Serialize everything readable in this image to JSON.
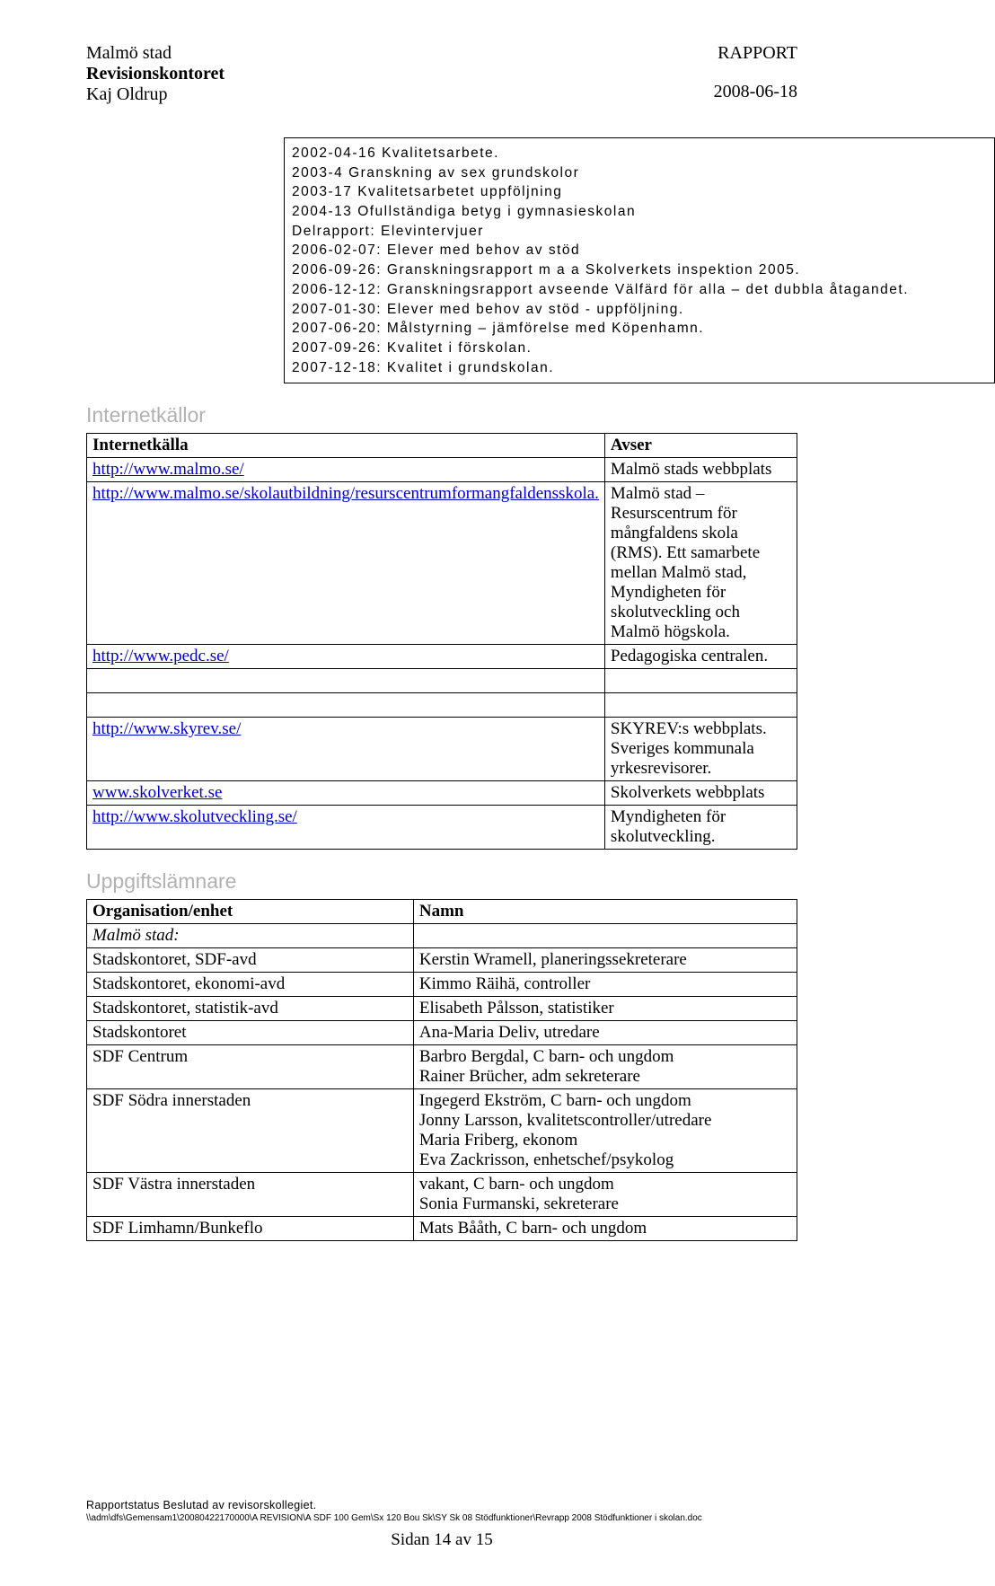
{
  "header": {
    "org": "Malmö stad",
    "dept": "Revisionskontoret",
    "author": "Kaj Oldrup",
    "doctype": "RAPPORT",
    "date": "2008-06-18"
  },
  "bibliography": [
    "2002-04-16 Kvalitetsarbete.",
    "2003-4 Granskning av sex grundskolor",
    "2003-17 Kvalitetsarbetet uppföljning",
    "2004-13 Ofullständiga betyg i gymnasieskolan",
    "Delrapport: Elevintervjuer",
    "2006-02-07: Elever med behov av stöd",
    "2006-09-26: Granskningsrapport m a a Skolverkets inspektion 2005.",
    "2006-12-12: Granskningsrapport avseende Välfärd för alla – det dubbla åtagandet.",
    "2007-01-30: Elever med behov av stöd - uppföljning.",
    "2007-06-20: Målstyrning – jämförelse med Köpenhamn.",
    "2007-09-26: Kvalitet i förskolan.",
    "2007-12-18: Kvalitet i grundskolan."
  ],
  "sections": {
    "internet": "Internetkällor",
    "uppgift": "Uppgiftslämnare"
  },
  "internetTable": {
    "headers": [
      "Internetkälla",
      "Avser"
    ],
    "rows": [
      {
        "url": "http://www.malmo.se/",
        "desc": "Malmö stads webbplats"
      },
      {
        "url": "http://www.malmo.se/skolautbildning/resurscentrumformangfaldensskola.",
        "desc": "Malmö stad – Resurscentrum för mångfaldens skola (RMS). Ett samarbete mellan Malmö stad, Myndigheten för skolutveckling och Malmö högskola."
      },
      {
        "url": "http://www.pedc.se/",
        "desc": "Pedagogiska centralen."
      }
    ],
    "rows2": [
      {
        "url": "http://www.skyrev.se/",
        "desc": "SKYREV:s webbplats. Sveriges kommunala yrkesrevisorer."
      },
      {
        "url": "www.skolverket.se",
        "desc": "Skolverkets webbplats"
      },
      {
        "url": "http://www.skolutveckling.se/",
        "desc": "Myndigheten för skolutveckling."
      }
    ]
  },
  "uppgiftTable": {
    "headers": [
      "Organisation/enhet",
      "Namn"
    ],
    "orgHeader": "Malmö stad:",
    "rows": [
      {
        "org": "Stadskontoret, SDF-avd",
        "name": "Kerstin Wramell, planeringssekreterare"
      },
      {
        "org": "Stadskontoret, ekonomi-avd",
        "name": "Kimmo Räihä, controller"
      },
      {
        "org": "Stadskontoret, statistik-avd",
        "name": "Elisabeth Pålsson, statistiker"
      },
      {
        "org": "Stadskontoret",
        "name": "Ana-Maria Deliv, utredare"
      },
      {
        "org": "SDF Centrum",
        "name": "Barbro Bergdal, C barn- och ungdom\nRainer Brücher, adm sekreterare"
      },
      {
        "org": "SDF Södra innerstaden",
        "name": "Ingegerd Ekström, C barn- och ungdom\nJonny Larsson, kvalitetscontroller/utredare\nMaria Friberg, ekonom\nEva Zackrisson, enhetschef/psykolog"
      },
      {
        "org": "SDF Västra innerstaden",
        "name": "vakant, C barn- och ungdom\nSonia Furmanski, sekreterare"
      },
      {
        "org": "SDF Limhamn/Bunkeflo",
        "name": "Mats Bååth, C barn- och ungdom"
      }
    ]
  },
  "footer": {
    "status": "Rapportstatus Beslutad av revisorskollegiet.",
    "path": "\\\\adm\\dfs\\Gemensam1\\20080422170000\\A   REVISION\\A SDF 100 Gem\\Sx 120 Bou Sk\\SY Sk 08 Stödfunktioner\\Revrapp 2008 Stödfunktioner i skolan.doc",
    "page": "Sidan 14 av 15"
  },
  "colors": {
    "text": "#000000",
    "link": "#0000cc",
    "heading": "#b1b1b1",
    "background": "#ffffff",
    "border": "#000000"
  }
}
